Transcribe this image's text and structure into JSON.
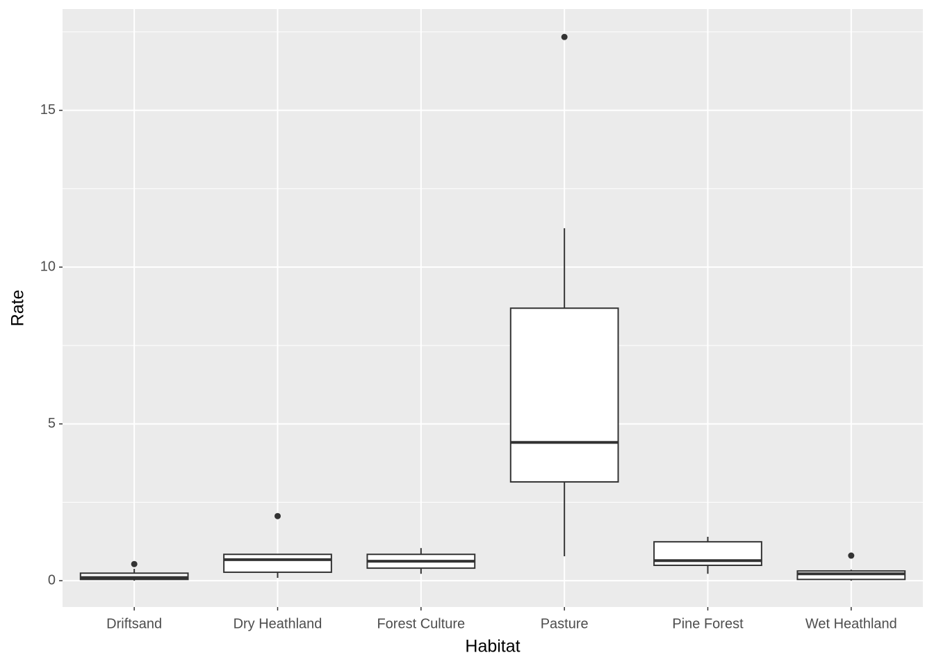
{
  "chart_data": {
    "type": "boxplot",
    "x_label": "Habitat",
    "y_label": "Rate",
    "categories": [
      "Driftsand",
      "Dry Heathland",
      "Forest Culture",
      "Pasture",
      "Pine Forest",
      "Wet Heathland"
    ],
    "boxes": [
      {
        "min": 0.0,
        "q1": 0.04,
        "median": 0.1,
        "q3": 0.24,
        "max": 0.38,
        "outliers": [
          0.53
        ]
      },
      {
        "min": 0.09,
        "q1": 0.27,
        "median": 0.67,
        "q3": 0.84,
        "max": 0.84,
        "outliers": [
          2.06
        ]
      },
      {
        "min": 0.22,
        "q1": 0.4,
        "median": 0.62,
        "q3": 0.84,
        "max": 1.04,
        "outliers": []
      },
      {
        "min": 0.78,
        "q1": 3.15,
        "median": 4.41,
        "q3": 8.69,
        "max": 11.24,
        "outliers": [
          17.34
        ]
      },
      {
        "min": 0.22,
        "q1": 0.49,
        "median": 0.64,
        "q3": 1.24,
        "max": 1.4,
        "outliers": []
      },
      {
        "min": 0.0,
        "q1": 0.04,
        "median": 0.22,
        "q3": 0.31,
        "max": 0.35,
        "outliers": [
          0.8
        ]
      }
    ],
    "ylim": [
      -0.84,
      18.23
    ],
    "yticks": [
      0,
      5,
      10,
      15
    ],
    "minor_yticks": [
      2.5,
      7.5,
      12.5,
      17.5
    ],
    "grid": true,
    "panel_color": "#ebebeb",
    "box_fill": "#ffffff",
    "line_color": "#333333"
  }
}
